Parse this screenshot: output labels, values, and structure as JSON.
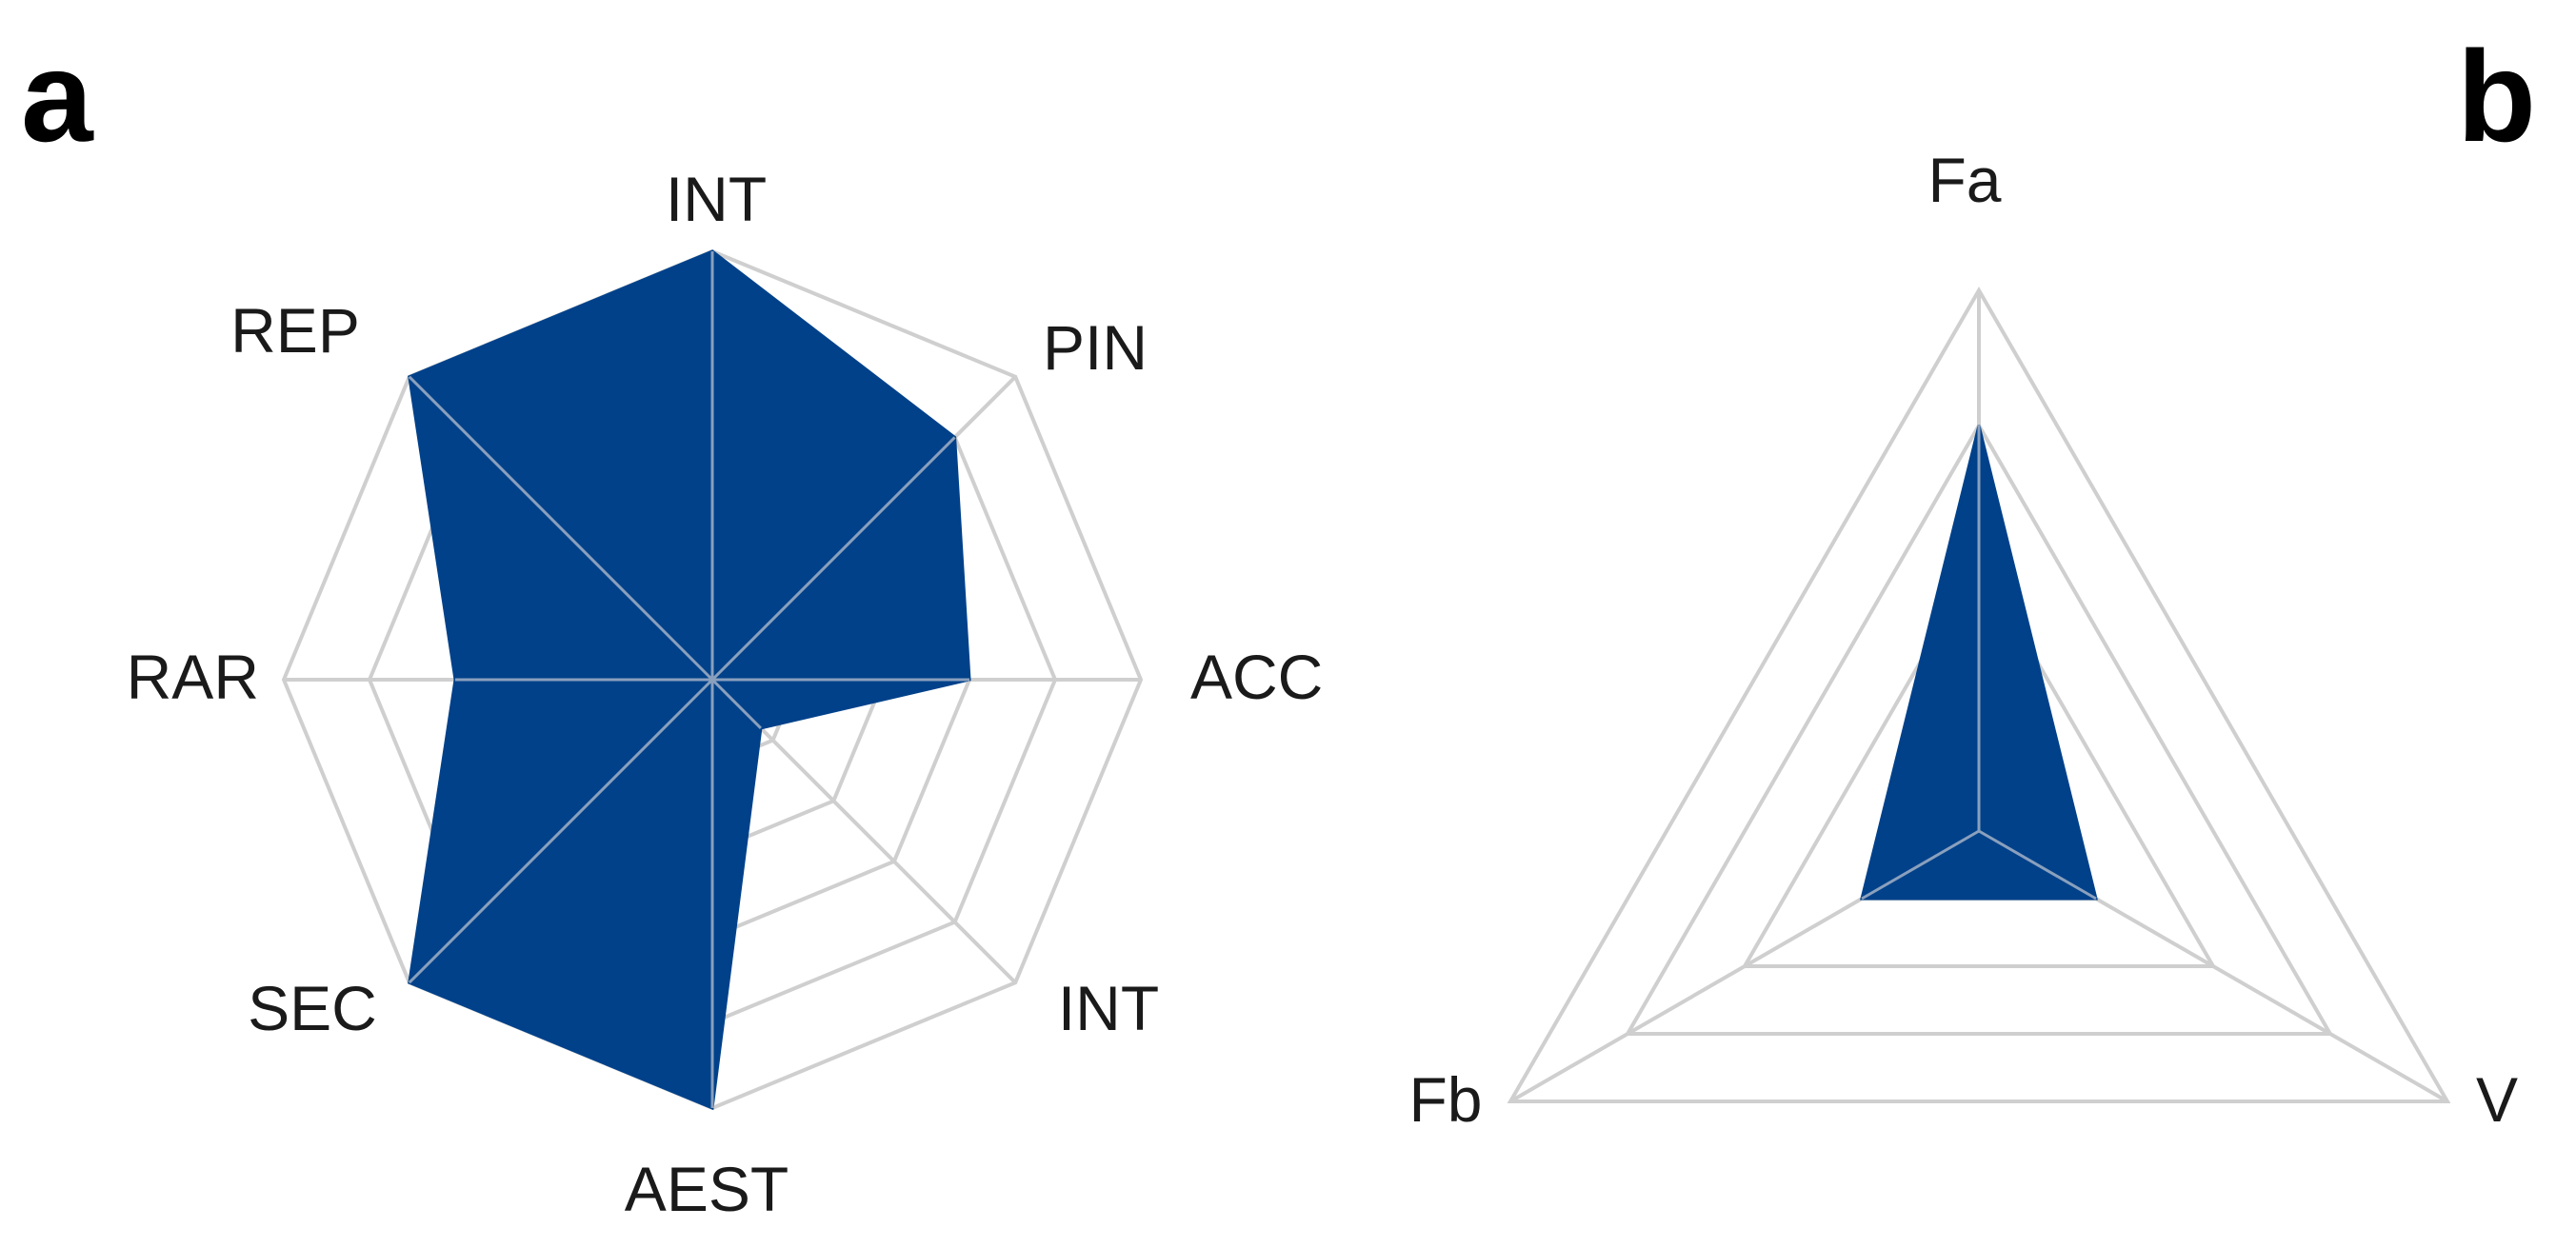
{
  "panels": [
    {
      "letter": "a"
    },
    {
      "letter": "b"
    }
  ],
  "chart_data": [
    {
      "type": "radar",
      "panel": "a",
      "axes": [
        "INT",
        "PIN",
        "ACC",
        "INT",
        "AEST",
        "SEC",
        "RAR",
        "REP"
      ],
      "range": [
        0,
        5
      ],
      "grid_levels": 5,
      "series": [
        {
          "values": [
            5,
            4,
            3,
            0.8,
            5,
            5,
            3,
            5
          ]
        }
      ],
      "colors": {
        "fill": "#00418a",
        "grid": "#cfcfcf"
      }
    },
    {
      "type": "radar",
      "panel": "b",
      "axes": [
        "Fa",
        "V",
        "Fb"
      ],
      "range": [
        0,
        4
      ],
      "grid_levels": 4,
      "series": [
        {
          "values": [
            3,
            1,
            1
          ]
        }
      ],
      "colors": {
        "fill": "#00418a",
        "grid": "#cfcfcf"
      }
    }
  ]
}
